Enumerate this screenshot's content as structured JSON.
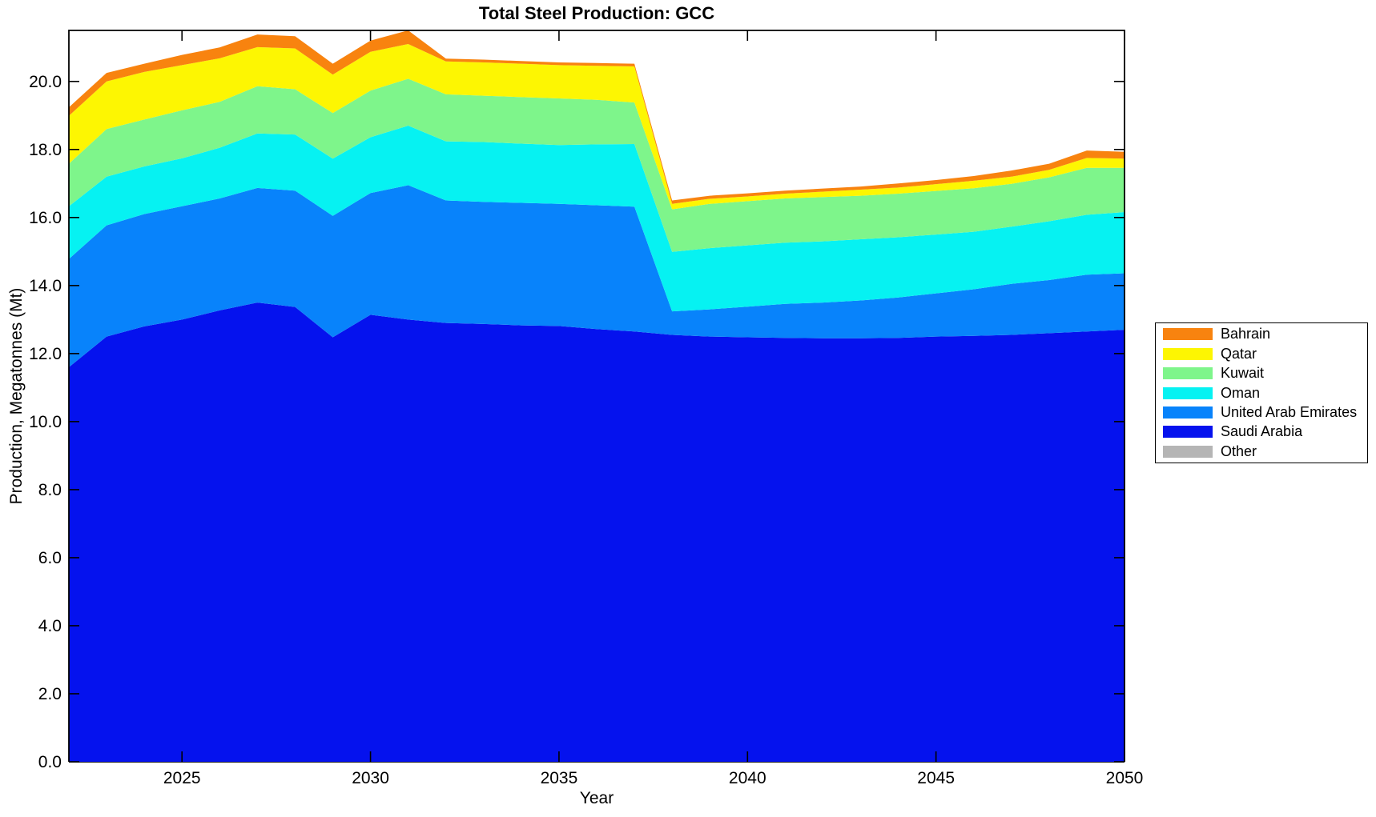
{
  "chart_data": {
    "type": "area",
    "stacked": true,
    "title": "Total Steel Production: GCC",
    "xlabel": "Year",
    "ylabel": "Production, Megatonnes (Mt)",
    "grid": false,
    "legend_position": "outside-right",
    "legend_order": "reverse-of-stack",
    "xlim": [
      2022,
      2050
    ],
    "ylim": [
      0,
      21.5
    ],
    "xticks": [
      2025,
      2030,
      2035,
      2040,
      2045,
      2050
    ],
    "yticks": [
      0,
      2,
      4,
      6,
      8,
      10,
      12,
      14,
      16,
      18,
      20
    ],
    "x": [
      2022,
      2023,
      2024,
      2025,
      2026,
      2027,
      2028,
      2029,
      2030,
      2031,
      2032,
      2033,
      2034,
      2035,
      2036,
      2037,
      2038,
      2039,
      2040,
      2041,
      2042,
      2043,
      2044,
      2045,
      2046,
      2047,
      2048,
      2049,
      2050
    ],
    "series": [
      {
        "name": "Other",
        "color": "#b5b5b5",
        "values": [
          0,
          0,
          0,
          0,
          0,
          0,
          0,
          0,
          0,
          0,
          0,
          0,
          0,
          0,
          0,
          0,
          0,
          0,
          0,
          0,
          0,
          0,
          0,
          0,
          0,
          0,
          0,
          0,
          0
        ]
      },
      {
        "name": "Saudi Arabia",
        "color": "#0512ee",
        "values": [
          11.6,
          12.5,
          12.8,
          13.0,
          13.27,
          13.5,
          13.37,
          12.48,
          13.14,
          13.0,
          12.9,
          12.87,
          12.83,
          12.81,
          12.72,
          12.65,
          12.55,
          12.5,
          12.48,
          12.46,
          12.45,
          12.45,
          12.46,
          12.5,
          12.52,
          12.55,
          12.6,
          12.65,
          12.7
        ]
      },
      {
        "name": "United Arab Emirates",
        "color": "#0883fb",
        "values": [
          3.18,
          3.27,
          3.3,
          3.33,
          3.29,
          3.37,
          3.42,
          3.57,
          3.58,
          3.95,
          3.6,
          3.59,
          3.6,
          3.59,
          3.64,
          3.67,
          0.69,
          0.8,
          0.9,
          1.0,
          1.05,
          1.11,
          1.19,
          1.27,
          1.37,
          1.5,
          1.56,
          1.67,
          1.66
        ]
      },
      {
        "name": "Oman",
        "color": "#06f2f2",
        "values": [
          1.55,
          1.43,
          1.4,
          1.41,
          1.49,
          1.6,
          1.65,
          1.68,
          1.64,
          1.75,
          1.74,
          1.76,
          1.74,
          1.73,
          1.79,
          1.84,
          1.75,
          1.8,
          1.8,
          1.8,
          1.8,
          1.8,
          1.77,
          1.73,
          1.69,
          1.68,
          1.73,
          1.76,
          1.8
        ]
      },
      {
        "name": "Kuwait",
        "color": "#7ef58b",
        "values": [
          1.25,
          1.4,
          1.38,
          1.41,
          1.35,
          1.39,
          1.33,
          1.34,
          1.37,
          1.38,
          1.38,
          1.36,
          1.37,
          1.37,
          1.31,
          1.22,
          1.25,
          1.3,
          1.3,
          1.3,
          1.3,
          1.28,
          1.28,
          1.28,
          1.28,
          1.26,
          1.29,
          1.38,
          1.3
        ]
      },
      {
        "name": "Qatar",
        "color": "#fdf602",
        "values": [
          1.41,
          1.4,
          1.4,
          1.33,
          1.28,
          1.15,
          1.2,
          1.13,
          1.14,
          1.02,
          0.97,
          0.98,
          0.98,
          0.98,
          1.0,
          1.06,
          0.16,
          0.15,
          0.14,
          0.14,
          0.16,
          0.18,
          0.18,
          0.2,
          0.22,
          0.21,
          0.22,
          0.29,
          0.27
        ]
      },
      {
        "name": "Bahrain",
        "color": "#f8830f",
        "values": [
          0.25,
          0.25,
          0.24,
          0.3,
          0.32,
          0.37,
          0.36,
          0.32,
          0.33,
          0.4,
          0.08,
          0.08,
          0.08,
          0.08,
          0.08,
          0.08,
          0.1,
          0.09,
          0.09,
          0.09,
          0.09,
          0.09,
          0.12,
          0.12,
          0.14,
          0.18,
          0.18,
          0.22,
          0.2
        ]
      }
    ],
    "axis_color": "#000000",
    "tick_direction": "in"
  }
}
